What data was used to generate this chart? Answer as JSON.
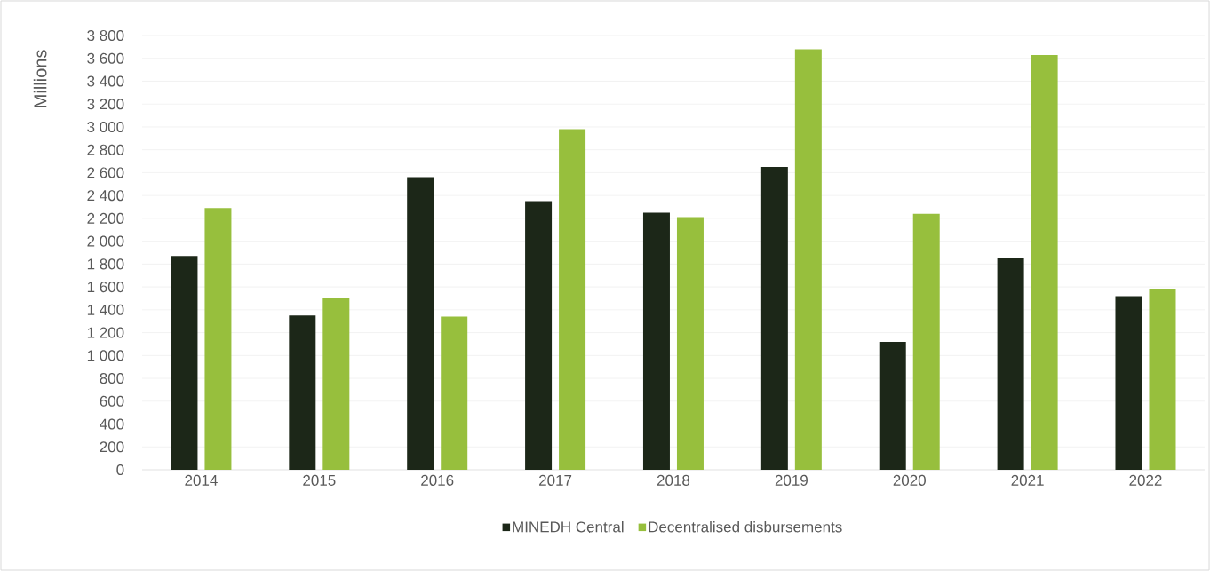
{
  "chart_data": {
    "type": "bar",
    "ylabel": "Millions",
    "categories": [
      "2014",
      "2015",
      "2016",
      "2017",
      "2018",
      "2019",
      "2020",
      "2021",
      "2022"
    ],
    "series": [
      {
        "name": "MINEDH Central",
        "color": "#1c2718",
        "values": [
          1870,
          1350,
          2560,
          2350,
          2250,
          2650,
          1120,
          1850,
          1520
        ]
      },
      {
        "name": "Decentralised disbursements",
        "color": "#97bf3d",
        "values": [
          2290,
          1500,
          1340,
          2980,
          2210,
          3680,
          2240,
          3630,
          1585
        ]
      }
    ],
    "ylim": [
      0,
      3800
    ],
    "yticks": [
      {
        "value": 0,
        "label": "0"
      },
      {
        "value": 200,
        "label": "200"
      },
      {
        "value": 400,
        "label": "400"
      },
      {
        "value": 600,
        "label": "600"
      },
      {
        "value": 800,
        "label": "800"
      },
      {
        "value": 1000,
        "label": "1 000"
      },
      {
        "value": 1200,
        "label": "1 200"
      },
      {
        "value": 1400,
        "label": "1 400"
      },
      {
        "value": 1600,
        "label": "1 600"
      },
      {
        "value": 1800,
        "label": "1 800"
      },
      {
        "value": 2000,
        "label": "2 000"
      },
      {
        "value": 2200,
        "label": "2 200"
      },
      {
        "value": 2400,
        "label": "2 400"
      },
      {
        "value": 2600,
        "label": "2 600"
      },
      {
        "value": 2800,
        "label": "2 800"
      },
      {
        "value": 3000,
        "label": "3 000"
      },
      {
        "value": 3200,
        "label": "3 200"
      },
      {
        "value": 3400,
        "label": "3 400"
      },
      {
        "value": 3600,
        "label": "3 600"
      },
      {
        "value": 3800,
        "label": "3 800"
      }
    ],
    "grid": "y",
    "legend": "bottom"
  }
}
